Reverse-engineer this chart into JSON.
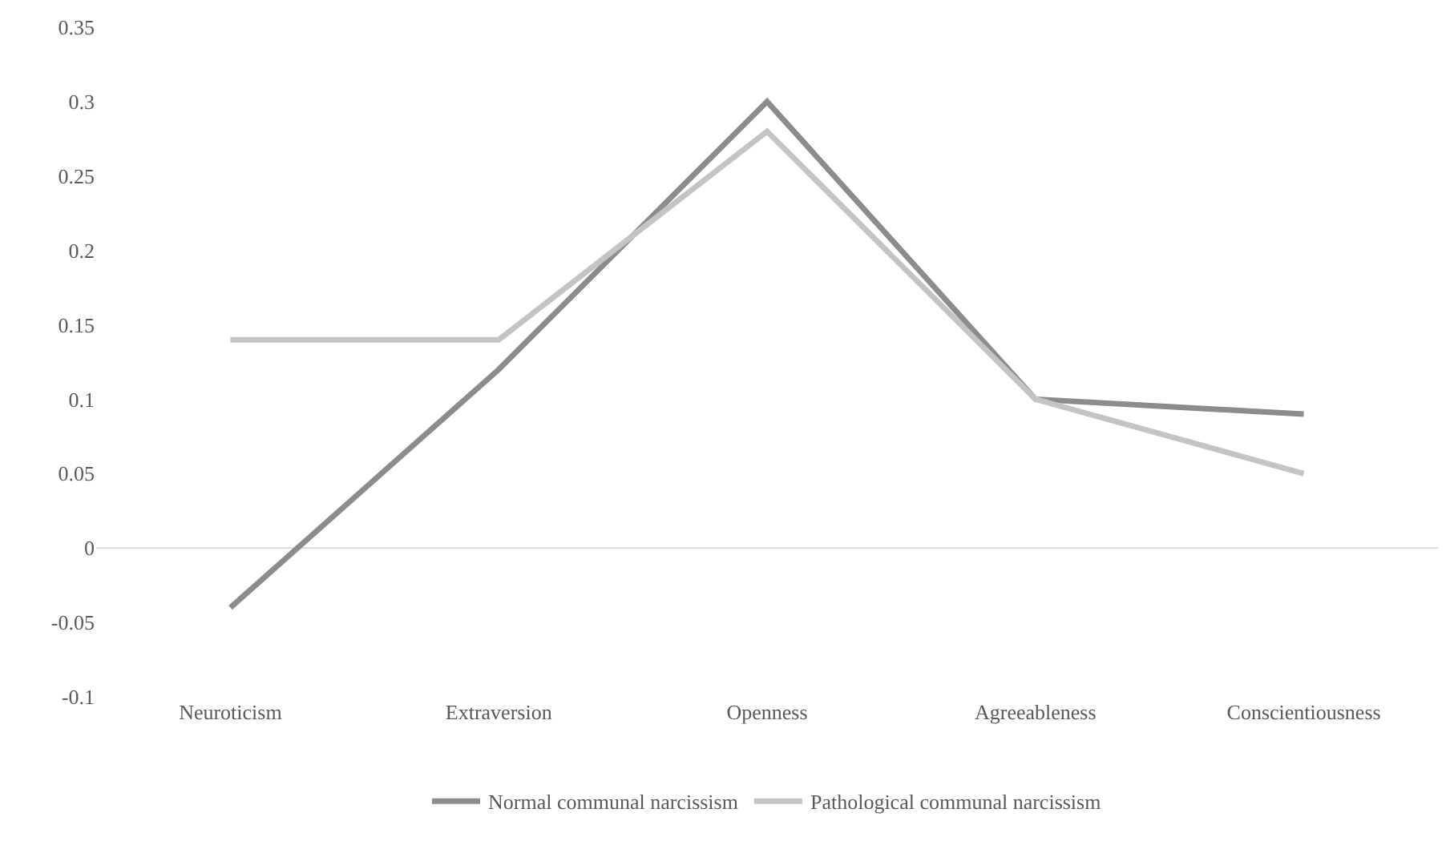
{
  "chart_data": {
    "type": "line",
    "categories": [
      "Neuroticism",
      "Extraversion",
      "Openness",
      "Agreeableness",
      "Conscientiousness"
    ],
    "series": [
      {
        "name": "Normal communal narcissism",
        "color": "#8c8c8c",
        "values": [
          -0.04,
          0.12,
          0.3,
          0.1,
          0.09
        ]
      },
      {
        "name": "Pathological communal narcissism",
        "color": "#c4c4c4",
        "values": [
          0.14,
          0.14,
          0.28,
          0.1,
          0.05
        ]
      }
    ],
    "ylim": [
      -0.1,
      0.35
    ],
    "yticks": [
      -0.1,
      -0.05,
      0,
      0.05,
      0.1,
      0.15,
      0.2,
      0.25,
      0.3,
      0.35
    ],
    "grid": false,
    "ref_lines": [
      {
        "axis": "y",
        "value": 0,
        "color": "#d9d9d9"
      }
    ],
    "legend": "bottom",
    "marker": "none",
    "line_style": "solid"
  }
}
